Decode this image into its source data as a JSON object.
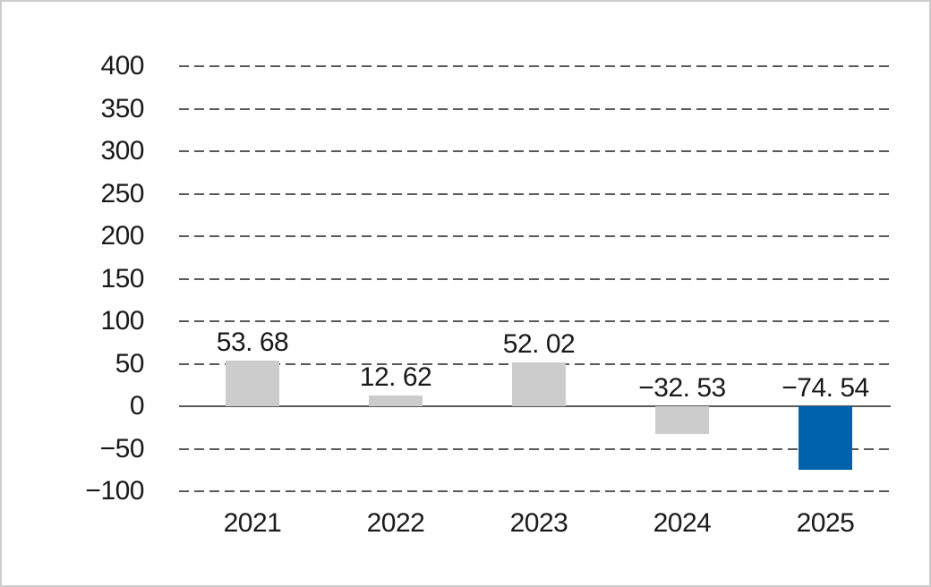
{
  "chart_data": {
    "type": "bar",
    "title": "",
    "xlabel": "",
    "ylabel": "",
    "categories": [
      "2021",
      "2022",
      "2023",
      "2024",
      "2025"
    ],
    "values": [
      53.68,
      12.62,
      52.02,
      -32.53,
      -74.54
    ],
    "value_labels": [
      "53. 68",
      "12. 62",
      "52. 02",
      "−32. 53",
      "−74. 54"
    ],
    "ylim": [
      -100,
      400
    ],
    "ytick_step": 50,
    "ytick_labels": [
      "400",
      "350",
      "300",
      "250",
      "200",
      "150",
      "100",
      "50",
      "0",
      "−50",
      "−100"
    ],
    "grid": "horizontal-dashed",
    "legend": "none",
    "highlight_index": 4,
    "colors": {
      "bar_default": "#cccccc",
      "bar_highlight": "#0061ac",
      "gridline": "#595959",
      "axis_line": "#595959",
      "text": "#1a1a1a",
      "background": "#ffffff",
      "frame_border": "#cccccc"
    }
  }
}
